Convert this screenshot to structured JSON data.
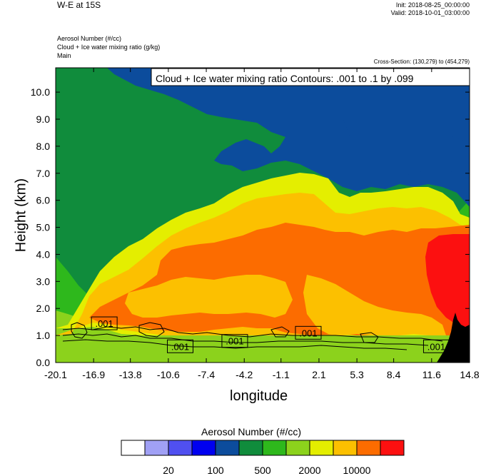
{
  "header": {
    "title": "W-E at 15S",
    "init": "Init: 2018-08-25_00:00:00",
    "valid": "Valid: 2018-10-01_03:00:00",
    "field1": "Aerosol Number   (#/cc)",
    "field2": "Cloud + Ice water mixing ratio   (g/kg)",
    "field3": "Main",
    "cross_section": "Cross-Section: (130,279) to (454,279)"
  },
  "chart_data": {
    "type": "heatmap",
    "title": "W-E at 15S",
    "xlabel": "longitude",
    "ylabel": "Height (km)",
    "xlim": [
      -20.1,
      14.8
    ],
    "ylim": [
      0.0,
      10.9
    ],
    "x_ticks": [
      "-20.1",
      "-16.9",
      "-13.8",
      "-10.6",
      "-7.4",
      "-4.2",
      "-1.1",
      "2.1",
      "5.3",
      "8.4",
      "11.6",
      "14.8"
    ],
    "y_ticks": [
      "0.0",
      "1.0",
      "2.0",
      "3.0",
      "4.0",
      "5.0",
      "6.0",
      "7.0",
      "8.0",
      "9.0",
      "10.0"
    ],
    "contour_info": "Cloud + Ice water mixing ratio Contours: .001 to .1 by .099",
    "contour_labels": [
      {
        "text": ".001",
        "lon": -16.0,
        "height": 1.45
      },
      {
        "text": ".001",
        "lon": -9.6,
        "height": 0.6
      },
      {
        "text": ".001",
        "lon": -5.0,
        "height": 0.8
      },
      {
        "text": ".001",
        "lon": 1.2,
        "height": 1.1
      },
      {
        "text": ".001",
        "lon": 12.0,
        "height": 0.6
      }
    ],
    "colorbar": {
      "title": "Aerosol Number  (#/cc)",
      "colors": [
        "#ffffff",
        "#a0a0f5",
        "#5050f0",
        "#0000f0",
        "#0c4c9c",
        "#108c3c",
        "#2eb81c",
        "#8cd21c",
        "#e4ee00",
        "#fcc000",
        "#fc6c00",
        "#fc1010"
      ],
      "labels": [
        "20",
        "100",
        "500",
        "2000",
        "10000"
      ]
    }
  }
}
